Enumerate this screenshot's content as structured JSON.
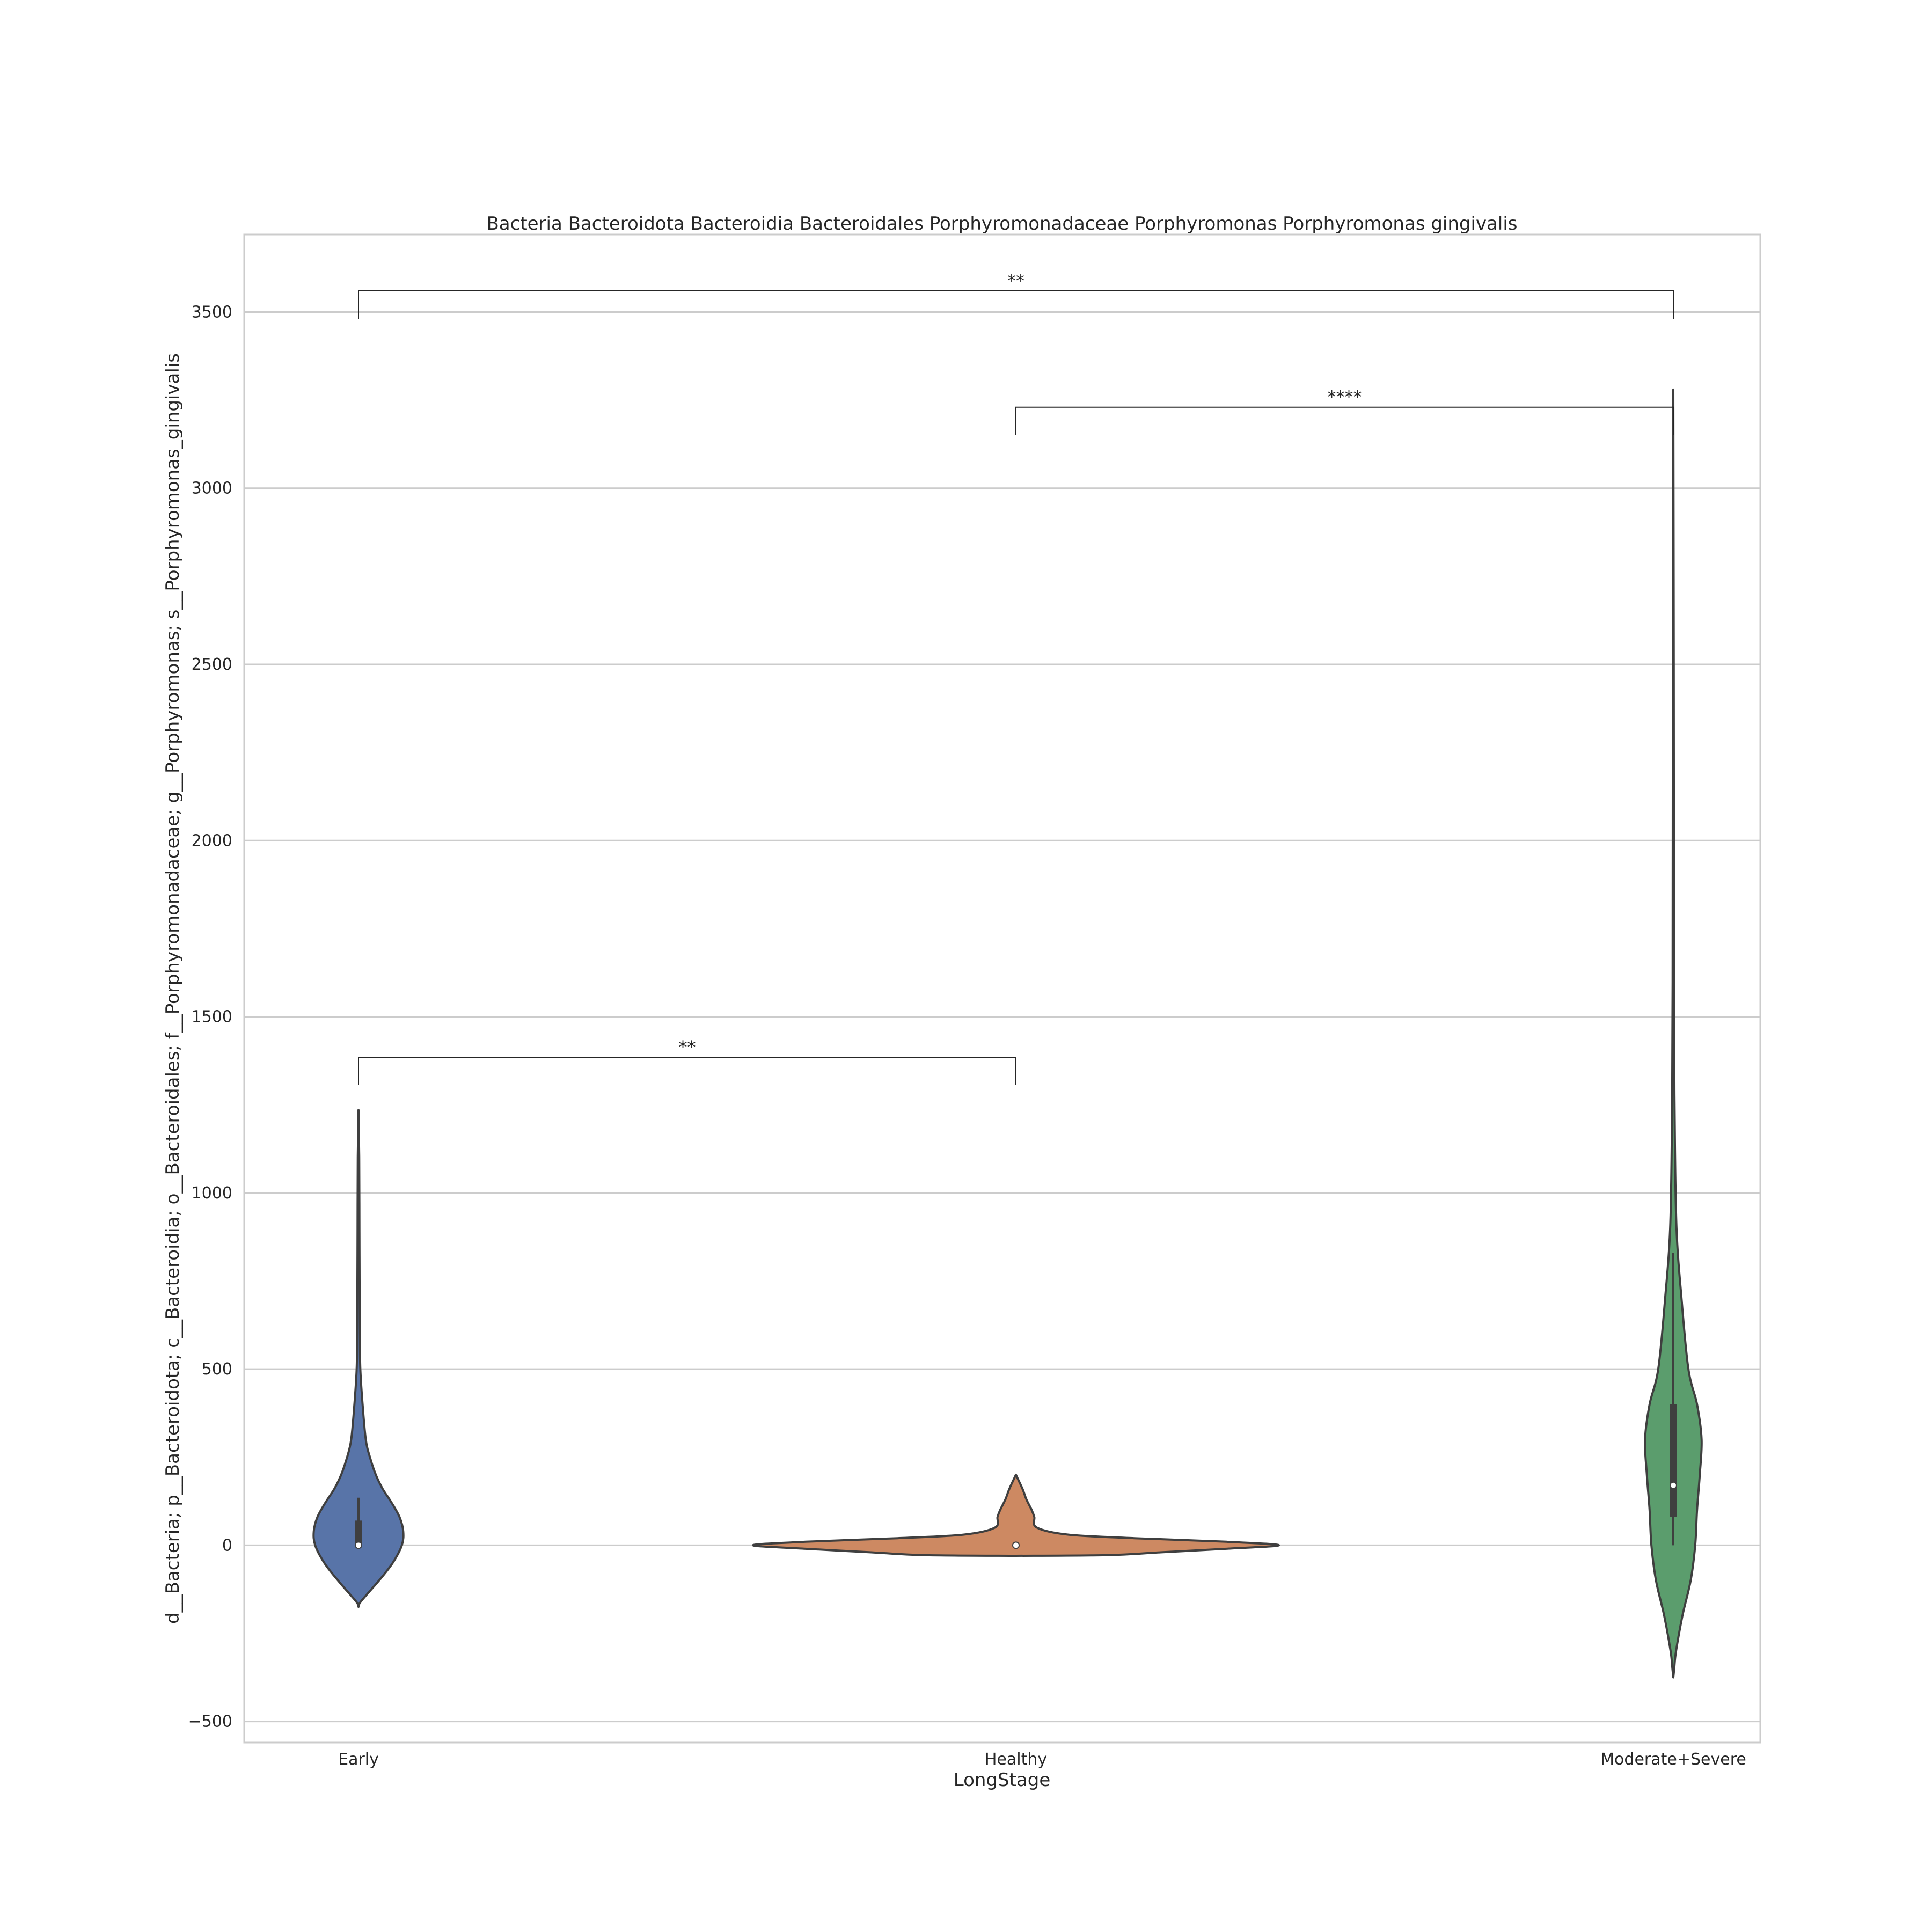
{
  "chart_data": {
    "type": "violin",
    "title": "Bacteria Bacteroidota Bacteroidia Bacteroidales Porphyromonadaceae Porphyromonas Porphyromonas gingivalis",
    "xlabel": "LongStage",
    "ylabel": "d__Bacteria; p__Bacteroidota; c__Bacteroidia; o__Bacteroidales; f__Porphyromonadaceae; g__Porphyromonas; s__Porphyromonas_gingivalis",
    "ylim": [
      -560,
      3720
    ],
    "yticks": [
      -500,
      0,
      500,
      1000,
      1500,
      2000,
      2500,
      3000,
      3500
    ],
    "ytick_labels": [
      "−500",
      "0",
      "500",
      "1000",
      "1500",
      "2000",
      "2500",
      "3000",
      "3500"
    ],
    "grid": true,
    "categories": [
      "Early",
      "Healthy",
      "Moderate+Severe"
    ],
    "violins": [
      {
        "category": "Early",
        "color": "#5874a8",
        "profile": [
          [
            -175,
            0.0
          ],
          [
            -160,
            0.05
          ],
          [
            -100,
            0.45
          ],
          [
            -50,
            0.75
          ],
          [
            0,
            0.95
          ],
          [
            40,
            0.98
          ],
          [
            80,
            0.9
          ],
          [
            120,
            0.73
          ],
          [
            160,
            0.53
          ],
          [
            200,
            0.38
          ],
          [
            250,
            0.25
          ],
          [
            300,
            0.16
          ],
          [
            400,
            0.09
          ],
          [
            500,
            0.04
          ],
          [
            600,
            0.03
          ],
          [
            700,
            0.025
          ],
          [
            900,
            0.02
          ],
          [
            1100,
            0.015
          ],
          [
            1235,
            0.0
          ]
        ],
        "median": 0,
        "q1": -5,
        "q3": 70,
        "whisker_low": -5,
        "whisker_high": 135
      },
      {
        "category": "Healthy",
        "color": "#cd8962",
        "profile": [
          [
            -30,
            0.0
          ],
          [
            -28,
            0.35
          ],
          [
            -20,
            0.55
          ],
          [
            -10,
            0.8
          ],
          [
            0,
            1.0
          ],
          [
            10,
            0.8
          ],
          [
            20,
            0.45
          ],
          [
            30,
            0.2
          ],
          [
            50,
            0.08
          ],
          [
            80,
            0.07
          ],
          [
            100,
            0.06
          ],
          [
            130,
            0.04
          ],
          [
            160,
            0.025
          ],
          [
            200,
            0.0
          ]
        ],
        "median": 0,
        "q1": 0,
        "q3": 0,
        "whisker_low": 0,
        "whisker_high": 0
      },
      {
        "category": "Moderate+Severe",
        "color": "#5b9d6d",
        "profile": [
          [
            -375,
            0.0
          ],
          [
            -350,
            0.02
          ],
          [
            -300,
            0.06
          ],
          [
            -200,
            0.2
          ],
          [
            -100,
            0.38
          ],
          [
            0,
            0.48
          ],
          [
            100,
            0.52
          ],
          [
            200,
            0.58
          ],
          [
            300,
            0.62
          ],
          [
            400,
            0.52
          ],
          [
            500,
            0.33
          ],
          [
            700,
            0.18
          ],
          [
            900,
            0.07
          ],
          [
            1200,
            0.03
          ],
          [
            1600,
            0.015
          ],
          [
            2500,
            0.01
          ],
          [
            3280,
            0.0
          ]
        ],
        "median": 170,
        "q1": 80,
        "q3": 400,
        "whisker_low": 0,
        "whisker_high": 830
      }
    ],
    "significance": [
      {
        "from": "Early",
        "to": "Moderate+Severe",
        "label": "**",
        "y": 3560
      },
      {
        "from": "Healthy",
        "to": "Moderate+Severe",
        "label": "****",
        "y": 3230
      },
      {
        "from": "Early",
        "to": "Healthy",
        "label": "**",
        "y": 1385
      }
    ]
  }
}
